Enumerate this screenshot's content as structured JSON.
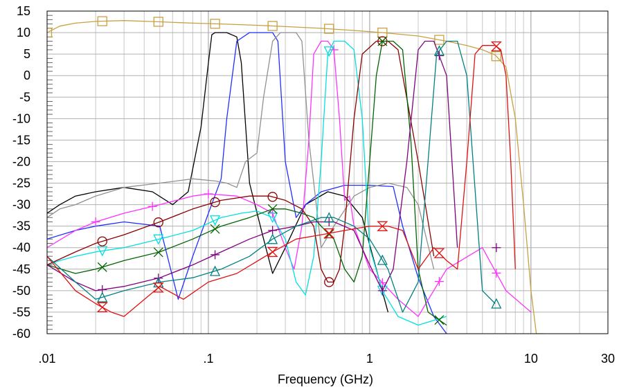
{
  "chart_data": {
    "type": "line",
    "title": "",
    "xlabel": "Frequency (GHz)",
    "ylabel": "",
    "x_scale": "log",
    "xlim": [
      0.01,
      30
    ],
    "ylim": [
      -60,
      15
    ],
    "x_tick_values": [
      0.01,
      0.1,
      1,
      10,
      30
    ],
    "x_tick_labels": [
      ".01",
      ".1",
      "1",
      "10",
      "30"
    ],
    "y_tick_values": [
      15,
      10,
      5,
      0,
      -5,
      -10,
      -15,
      -20,
      -25,
      -30,
      -35,
      -40,
      -45,
      -50,
      -55,
      -60
    ],
    "y_tick_labels": [
      "15",
      "10",
      "5",
      "0",
      "-5",
      "-10",
      "-15",
      "-20",
      "-25",
      "-30",
      "-35",
      "-40",
      "-45",
      "-50",
      "-55",
      "-60"
    ],
    "grid": true,
    "series": [
      {
        "color": "#c8a040",
        "marker": "square",
        "x": [
          0.01,
          0.012,
          0.015,
          0.02,
          0.03,
          0.05,
          0.08,
          0.12,
          0.2,
          0.3,
          0.5,
          0.8,
          1.2,
          2,
          3,
          4,
          5,
          6,
          7,
          8,
          9,
          10,
          10.8,
          12
        ],
        "y": [
          10,
          11.5,
          12.2,
          12.6,
          12.8,
          12.5,
          12.2,
          12,
          11.7,
          11.4,
          11,
          10.5,
          10,
          9.2,
          8,
          7,
          6,
          4.8,
          2,
          -10,
          -30,
          -50,
          -60,
          -60
        ],
        "marker_x": [
          0.01,
          0.022,
          0.049,
          0.11,
          0.25,
          0.56,
          1.2,
          2.7,
          6.1
        ]
      },
      {
        "color": "#000000",
        "marker": "none",
        "x": [
          0.01,
          0.012,
          0.015,
          0.02,
          0.03,
          0.045,
          0.06,
          0.075,
          0.09,
          0.1,
          0.105,
          0.11,
          0.13,
          0.15,
          0.16,
          0.18,
          0.22,
          0.25,
          0.3,
          0.4,
          0.55,
          0.7,
          0.9,
          1.1,
          1.3
        ],
        "y": [
          -32,
          -30,
          -28,
          -27,
          -26,
          -27,
          -30,
          -27,
          -12,
          3,
          9.5,
          10,
          10,
          9,
          3,
          -25,
          -38,
          -46,
          -40,
          -30,
          -27,
          -28,
          -33,
          -45,
          -55
        ]
      },
      {
        "color": "#1f2fff",
        "marker": "none",
        "x": [
          0.01,
          0.015,
          0.02,
          0.03,
          0.05,
          0.065,
          0.08,
          0.1,
          0.12,
          0.13,
          0.15,
          0.18,
          0.22,
          0.25,
          0.27,
          0.3,
          0.35,
          0.4,
          0.5,
          0.7,
          1,
          1.4,
          1.6,
          2,
          2.5,
          3
        ],
        "y": [
          -38,
          -36,
          -35,
          -34,
          -35,
          -52,
          -42,
          -32,
          -24,
          -10,
          8,
          10,
          10,
          10,
          8,
          -20,
          -33,
          -30,
          -27,
          -25.5,
          -25.5,
          -25.8,
          -35,
          -47,
          -56,
          -60
        ],
        "marker_x": [
          0.05,
          0.12,
          0.24
        ]
      },
      {
        "color": "#909090",
        "marker": "none",
        "x": [
          0.01,
          0.012,
          0.015,
          0.02,
          0.03,
          0.05,
          0.08,
          0.11,
          0.13,
          0.15,
          0.17,
          0.2,
          0.22,
          0.25,
          0.28,
          0.32,
          0.35,
          0.38,
          0.42,
          0.5,
          0.6,
          0.8,
          1,
          1.3,
          1.7,
          2,
          2.5
        ],
        "y": [
          -33,
          -31,
          -30,
          -28,
          -26,
          -25,
          -24,
          -24.5,
          -25,
          -26,
          -20,
          -18,
          -5,
          8,
          10,
          10,
          10,
          8,
          -15,
          -40,
          -35,
          -28,
          -26,
          -25,
          -26,
          -30,
          -45
        ]
      },
      {
        "color": "#ff30ff",
        "marker": "plus",
        "x": [
          0.01,
          0.015,
          0.02,
          0.03,
          0.05,
          0.08,
          0.1,
          0.15,
          0.2,
          0.25,
          0.3,
          0.34,
          0.38,
          0.42,
          0.45,
          0.5,
          0.55,
          0.6,
          0.65,
          0.7,
          0.75,
          0.8,
          1,
          1.5,
          2,
          3,
          5,
          7,
          10
        ],
        "y": [
          -40,
          -36,
          -34,
          -32,
          -30,
          -28,
          -27.5,
          -28,
          -30,
          -32,
          -40,
          -45,
          -35,
          -15,
          5,
          8,
          8,
          6,
          -10,
          -29,
          -28,
          -35,
          -45,
          -52,
          -56,
          -45,
          -40,
          -50,
          -55
        ],
        "marker_x": [
          0.02,
          0.045,
          0.1,
          0.25,
          0.6,
          1.2,
          2.7,
          6.1
        ]
      },
      {
        "color": "#00e0e0",
        "marker": "triangle-down",
        "x": [
          0.01,
          0.012,
          0.015,
          0.02,
          0.03,
          0.05,
          0.08,
          0.12,
          0.16,
          0.2,
          0.25,
          0.3,
          0.35,
          0.4,
          0.45,
          0.5,
          0.55,
          0.6,
          0.7,
          0.8,
          0.9,
          1,
          1.2,
          1.5,
          2,
          3
        ],
        "y": [
          -44,
          -43,
          -42,
          -41,
          -40,
          -38,
          -36,
          -33,
          -32,
          -31.5,
          -33,
          -38,
          -48,
          -51,
          -42,
          -20,
          5,
          8,
          8,
          6,
          -10,
          -40,
          -50,
          -56,
          -58,
          -56
        ],
        "marker_x": [
          0.022,
          0.049,
          0.11,
          0.25,
          0.56,
          1.2
        ]
      },
      {
        "color": "#8b0000",
        "marker": "circle",
        "x": [
          0.01,
          0.015,
          0.02,
          0.03,
          0.05,
          0.08,
          0.12,
          0.18,
          0.24,
          0.3,
          0.38,
          0.45,
          0.5,
          0.55,
          0.6,
          0.65,
          0.7,
          0.8,
          0.9,
          1.1,
          1.3,
          1.5,
          2,
          2.5
        ],
        "y": [
          -44,
          -41,
          -39,
          -37,
          -34,
          -31,
          -29,
          -28,
          -28,
          -29,
          -31,
          -35,
          -45,
          -48,
          -48,
          -45,
          -35,
          -10,
          5,
          8,
          8,
          6,
          -20,
          -42
        ],
        "marker_x": [
          0.022,
          0.049,
          0.11,
          0.25,
          0.56,
          1.2
        ]
      },
      {
        "color": "#006400",
        "marker": "x",
        "x": [
          0.01,
          0.015,
          0.02,
          0.03,
          0.05,
          0.08,
          0.12,
          0.18,
          0.25,
          0.3,
          0.38,
          0.45,
          0.5,
          0.6,
          0.7,
          0.8,
          0.9,
          1,
          1.1,
          1.2,
          1.4,
          1.6,
          1.8,
          2,
          2.3,
          3
        ],
        "y": [
          -44,
          -46,
          -45,
          -43,
          -41,
          -38,
          -35,
          -33,
          -31,
          -31,
          -32,
          -33,
          -35,
          -38,
          -45,
          -48,
          -42,
          -20,
          0,
          8,
          8,
          6,
          -15,
          -45,
          -55,
          -58
        ],
        "marker_x": [
          0.022,
          0.049,
          0.11,
          0.25,
          0.56,
          1.2,
          2.7
        ]
      },
      {
        "color": "#800080",
        "marker": "plus",
        "x": [
          0.01,
          0.015,
          0.02,
          0.03,
          0.05,
          0.08,
          0.12,
          0.18,
          0.25,
          0.35,
          0.45,
          0.6,
          0.8,
          1,
          1.2,
          1.4,
          1.7,
          2,
          2.2,
          2.5,
          3,
          3.5
        ],
        "y": [
          -44,
          -48,
          -50,
          -49,
          -47,
          -44,
          -41,
          -38,
          -36,
          -35,
          -34,
          -34,
          -36,
          -44,
          -50,
          -45,
          -20,
          6,
          8,
          8,
          0,
          -40
        ],
        "marker_x": [
          0.022,
          0.049,
          0.11,
          0.25,
          0.56,
          1.2,
          2.7,
          6.1
        ]
      },
      {
        "color": "#008080",
        "marker": "triangle",
        "x": [
          0.01,
          0.015,
          0.02,
          0.03,
          0.05,
          0.08,
          0.12,
          0.18,
          0.25,
          0.35,
          0.5,
          0.6,
          0.8,
          1,
          1.3,
          1.6,
          2,
          2.3,
          2.6,
          3,
          3.5,
          4,
          5,
          6
        ],
        "y": [
          -42,
          -48,
          -52,
          -50,
          -48,
          -47,
          -45,
          -42,
          -38,
          -35,
          -33,
          -33,
          -35,
          -38,
          -45,
          -55,
          -48,
          -20,
          5,
          8,
          8,
          0,
          -50,
          -53
        ],
        "marker_x": [
          0.022,
          0.049,
          0.11,
          0.25,
          0.56,
          1.2,
          2.7,
          6.1
        ]
      },
      {
        "color": "#e01010",
        "marker": "hourglass",
        "x": [
          0.01,
          0.015,
          0.02,
          0.025,
          0.03,
          0.05,
          0.07,
          0.1,
          0.15,
          0.25,
          0.35,
          0.5,
          0.7,
          1,
          1.3,
          1.6,
          2,
          2.5,
          3,
          3.5,
          4,
          4.5,
          5,
          6,
          6.5,
          7,
          7.5,
          8
        ],
        "y": [
          -42,
          -50,
          -53,
          -55,
          -56,
          -49,
          -52,
          -48,
          -46,
          -41,
          -38,
          -37,
          -36,
          -35,
          -35,
          -36,
          -45,
          -40,
          -43,
          -45,
          -20,
          5,
          7,
          7,
          6,
          0,
          -20,
          -45
        ],
        "marker_x": [
          0.022,
          0.049,
          0.25,
          0.56,
          1.2,
          2.7,
          6.1
        ]
      }
    ]
  }
}
